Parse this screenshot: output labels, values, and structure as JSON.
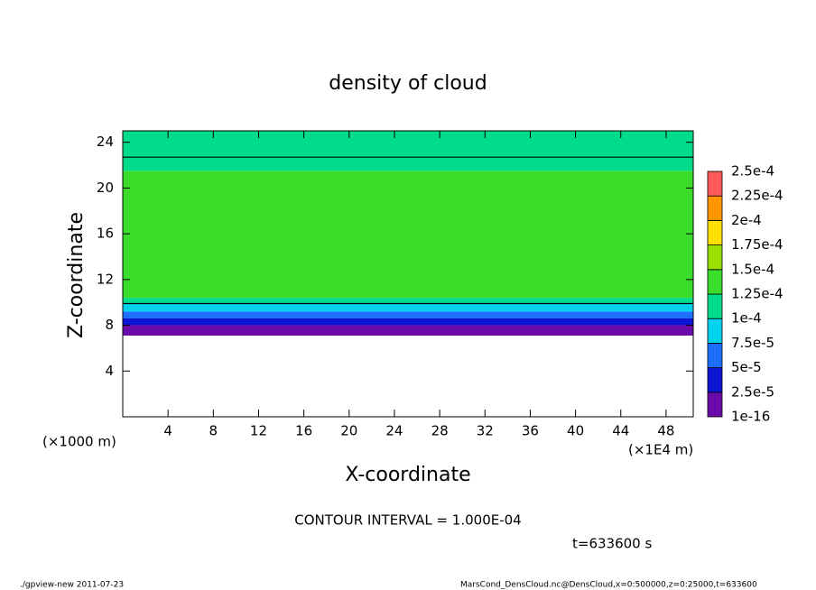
{
  "chart_data": {
    "type": "layered-field",
    "title": "density of cloud",
    "x_label": "X-coordinate",
    "y_label": "Z-coordinate",
    "x_unit": "(×1E4 m)",
    "y_unit": "(×1000 m)",
    "xlim": [
      0,
      50.4
    ],
    "ylim": [
      0,
      25
    ],
    "xticks": [
      4,
      8,
      12,
      16,
      20,
      24,
      28,
      32,
      36,
      40,
      44,
      48
    ],
    "yticks": [
      4,
      8,
      12,
      16,
      20,
      24
    ],
    "layers": [
      {
        "z": [
          7.1,
          8.0
        ],
        "value": 1e-05
      },
      {
        "z": [
          8.0,
          8.6
        ],
        "value": 3.5e-05
      },
      {
        "z": [
          8.6,
          9.2
        ],
        "value": 6e-05
      },
      {
        "z": [
          9.2,
          9.9
        ],
        "value": 8.5e-05
      },
      {
        "z": [
          9.9,
          10.4
        ],
        "value": 0.00011
      },
      {
        "z": [
          10.4,
          21.5
        ],
        "value": 0.00014
      },
      {
        "z": [
          21.5,
          22.7
        ],
        "value": 0.00012
      },
      {
        "z": [
          22.7,
          25
        ],
        "value": 0.000105
      }
    ],
    "contour_z": [
      9.9,
      22.7
    ],
    "colorbar": {
      "levels": [
        {
          "value": 1e-16,
          "label": "1e-16"
        },
        {
          "value": 2.5e-05,
          "label": "2.5e-5"
        },
        {
          "value": 5e-05,
          "label": "5e-5"
        },
        {
          "value": 7.5e-05,
          "label": "7.5e-5"
        },
        {
          "value": 0.0001,
          "label": "1e-4"
        },
        {
          "value": 0.000125,
          "label": "1.25e-4"
        },
        {
          "value": 0.00015,
          "label": "1.5e-4"
        },
        {
          "value": 0.000175,
          "label": "1.75e-4"
        },
        {
          "value": 0.0002,
          "label": "2e-4"
        },
        {
          "value": 0.000225,
          "label": "2.25e-4"
        },
        {
          "value": 0.00025,
          "label": "2.5e-4"
        }
      ],
      "colors": [
        "#6a0aa8",
        "#0a14d2",
        "#1e6eff",
        "#00d2f0",
        "#00dc8c",
        "#3cdc2a",
        "#9ae000",
        "#ffe000",
        "#ff9600",
        "#ff5a5a"
      ]
    },
    "contour_note": "CONTOUR INTERVAL = 1.000E-04",
    "time_note": "t=633600 s",
    "footer_left": "./gpview-new   2011-07-23",
    "footer_right": "MarsCond_DensCloud.nc@DensCloud,x=0:500000,z=0:25000,t=633600"
  }
}
